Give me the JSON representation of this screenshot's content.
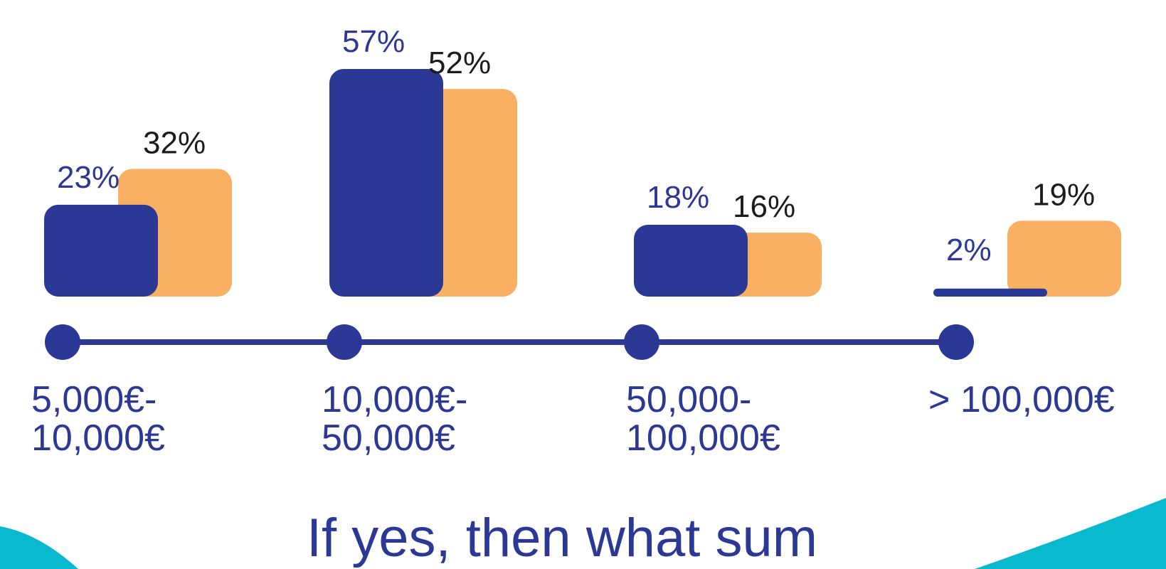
{
  "chart_data": {
    "type": "bar",
    "categories": [
      [
        "5,000€-",
        "10,000€"
      ],
      [
        "10,000€-",
        "50,000€"
      ],
      [
        "50,000-",
        "100,000€"
      ],
      [
        "> 100,000€"
      ]
    ],
    "series": [
      {
        "values": [
          23,
          57,
          18,
          2
        ],
        "labels": [
          "23%",
          "57%",
          "18%",
          "2%"
        ]
      },
      {
        "values": [
          32,
          52,
          16,
          19
        ],
        "labels": [
          "32%",
          "52%",
          "16%",
          "19%"
        ]
      }
    ],
    "ylim": [
      0,
      57
    ],
    "grid": false,
    "legend": "none",
    "colors": {
      "series_1": "#2b3896",
      "series_2": "#f9b062",
      "series_2_label_text": "#1c1c1c",
      "timeline": "#2b3896",
      "accent": "#08b9cf",
      "text": "#2b3896"
    }
  },
  "title": "If yes, then what sum"
}
